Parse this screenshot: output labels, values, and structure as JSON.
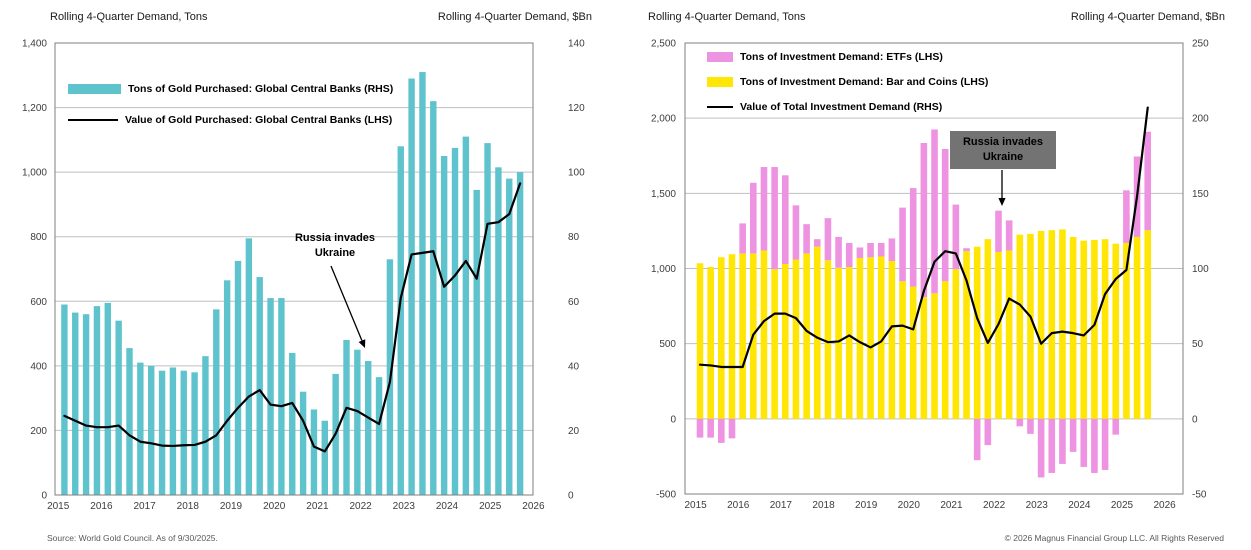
{
  "footer": {
    "source": "Source: World Gold Council. As of 9/30/2025.",
    "copyright": "© 2026 Magnus Financial Group LLC. All Rights Reserved"
  },
  "annotation_colors": {
    "plain_text": "#000000",
    "box_bg": "#737373",
    "box_text": "#000000"
  },
  "chart_data": [
    {
      "type": "bar",
      "subtype": "bar-with-line-overlay",
      "title_left": "Rolling 4-Quarter Demand, Tons",
      "title_right": "Rolling 4-Quarter Demand, $Bn",
      "grid": true,
      "legend_position": "top-left-inside",
      "y_left": {
        "min": 0,
        "max": 1400,
        "step": 200,
        "ticks": [
          "1,400",
          "1,200",
          "1,000",
          "800",
          "600",
          "400",
          "200",
          "0"
        ]
      },
      "y_right": {
        "min": 0,
        "max": 140,
        "step": 20,
        "ticks": [
          "140",
          "120",
          "100",
          "80",
          "60",
          "40",
          "20",
          "0"
        ]
      },
      "x_years": [
        "2015",
        "2016",
        "2017",
        "2018",
        "2019",
        "2020",
        "2021",
        "2022",
        "2023",
        "2024",
        "2025",
        "2026"
      ],
      "categories": [
        "2015 Q1",
        "2015 Q2",
        "2015 Q3",
        "2015 Q4",
        "2016 Q1",
        "2016 Q2",
        "2016 Q3",
        "2016 Q4",
        "2017 Q1",
        "2017 Q2",
        "2017 Q3",
        "2017 Q4",
        "2018 Q1",
        "2018 Q2",
        "2018 Q3",
        "2018 Q4",
        "2019 Q1",
        "2019 Q2",
        "2019 Q3",
        "2019 Q4",
        "2020 Q1",
        "2020 Q2",
        "2020 Q3",
        "2020 Q4",
        "2021 Q1",
        "2021 Q2",
        "2021 Q3",
        "2021 Q4",
        "2022 Q1",
        "2022 Q2",
        "2022 Q3",
        "2022 Q4",
        "2023 Q1",
        "2023 Q2",
        "2023 Q3",
        "2023 Q4",
        "2024 Q1",
        "2024 Q2",
        "2024 Q3",
        "2024 Q4",
        "2025 Q1",
        "2025 Q2",
        "2025 Q3"
      ],
      "series": [
        {
          "name": "Tons of Gold Purchased: Global Central Banks (RHS)",
          "type": "bar",
          "color": "#5EC3CD",
          "axis": "left",
          "unit": "tons",
          "values": [
            590,
            565,
            560,
            585,
            595,
            540,
            455,
            410,
            400,
            385,
            395,
            385,
            380,
            430,
            575,
            665,
            725,
            795,
            675,
            610,
            610,
            440,
            320,
            265,
            230,
            375,
            480,
            450,
            415,
            365,
            730,
            1080,
            1290,
            1310,
            1220,
            1050,
            1075,
            1110,
            945,
            1090,
            1015,
            980,
            1000
          ]
        },
        {
          "name": "Value of Gold Purchased: Global Central Banks (LHS)",
          "type": "line",
          "color": "#000000",
          "axis": "right",
          "unit": "$Bn",
          "values": [
            24.5,
            23,
            21.5,
            21,
            21,
            21.5,
            18.5,
            16.5,
            16,
            15.3,
            15.2,
            15.4,
            15.5,
            16.5,
            18.5,
            23,
            27,
            30.5,
            32.5,
            28,
            27.5,
            28.5,
            23,
            15,
            13.5,
            19,
            27,
            26,
            24,
            22,
            35,
            61,
            74.5,
            75,
            75.5,
            64.5,
            68,
            72.5,
            67,
            84,
            84.5,
            87,
            96.5
          ]
        }
      ],
      "annotation": {
        "line1": "Russia invades",
        "line2": "Ukraine",
        "style": "text-with-arrow"
      }
    },
    {
      "type": "bar",
      "subtype": "stacked-bar-with-line-overlay",
      "title_left": "Rolling 4-Quarter Demand, Tons",
      "title_right": "Rolling 4-Quarter Demand, $Bn",
      "grid": true,
      "legend_position": "top-left-inside",
      "y_left": {
        "min": -500,
        "max": 2500,
        "step": 500,
        "ticks": [
          "2,500",
          "2,000",
          "1,500",
          "1,000",
          "500",
          "0",
          "-500"
        ]
      },
      "y_right": {
        "min": -50,
        "max": 250,
        "step": 50,
        "ticks": [
          "250",
          "200",
          "150",
          "100",
          "50",
          "0",
          "-50"
        ]
      },
      "x_years": [
        "2015",
        "2016",
        "2017",
        "2018",
        "2019",
        "2020",
        "2021",
        "2022",
        "2023",
        "2024",
        "2025",
        "2026"
      ],
      "categories": [
        "2015 Q1",
        "2015 Q2",
        "2015 Q3",
        "2015 Q4",
        "2016 Q1",
        "2016 Q2",
        "2016 Q3",
        "2016 Q4",
        "2017 Q1",
        "2017 Q2",
        "2017 Q3",
        "2017 Q4",
        "2018 Q1",
        "2018 Q2",
        "2018 Q3",
        "2018 Q4",
        "2019 Q1",
        "2019 Q2",
        "2019 Q3",
        "2019 Q4",
        "2020 Q1",
        "2020 Q2",
        "2020 Q3",
        "2020 Q4",
        "2021 Q1",
        "2021 Q2",
        "2021 Q3",
        "2021 Q4",
        "2022 Q1",
        "2022 Q2",
        "2022 Q3",
        "2022 Q4",
        "2023 Q1",
        "2023 Q2",
        "2023 Q3",
        "2023 Q4",
        "2024 Q1",
        "2024 Q2",
        "2024 Q3",
        "2024 Q4",
        "2025 Q1",
        "2025 Q2",
        "2025 Q3"
      ],
      "series": [
        {
          "name": "Tons of Investment Demand: ETFs (LHS)",
          "type": "bar",
          "stack": "top",
          "color": "#EE93E2",
          "axis": "left",
          "unit": "tons",
          "values": [
            -125,
            -125,
            -160,
            -130,
            200,
            470,
            555,
            680,
            590,
            360,
            195,
            50,
            280,
            205,
            160,
            70,
            95,
            90,
            150,
            490,
            655,
            1025,
            1090,
            880,
            430,
            20,
            -275,
            -175,
            275,
            200,
            -50,
            -100,
            -390,
            -360,
            -300,
            -220,
            -320,
            -360,
            -340,
            -105,
            350,
            535,
            655
          ]
        },
        {
          "name": "Tons of Investment Demand: Bar and Coins (LHS)",
          "type": "bar",
          "stack": "base",
          "color": "#FFE605",
          "axis": "left",
          "unit": "tons",
          "values": [
            1035,
            1010,
            1075,
            1095,
            1100,
            1100,
            1120,
            995,
            1030,
            1060,
            1100,
            1145,
            1055,
            1005,
            1010,
            1070,
            1075,
            1080,
            1050,
            915,
            880,
            810,
            835,
            915,
            995,
            1115,
            1145,
            1195,
            1110,
            1120,
            1225,
            1230,
            1250,
            1255,
            1260,
            1210,
            1185,
            1190,
            1195,
            1165,
            1170,
            1210,
            1255
          ]
        },
        {
          "name": "Value of Total Investment Demand (RHS)",
          "type": "line",
          "color": "#000000",
          "axis": "right",
          "unit": "$Bn",
          "values": [
            36,
            35.5,
            34.5,
            34.5,
            34.5,
            56,
            65,
            70,
            70,
            67,
            58.5,
            54,
            51,
            51.5,
            55.5,
            51,
            47.5,
            51.5,
            61.5,
            62,
            59.5,
            85,
            104.5,
            111.5,
            110,
            92,
            67,
            50.5,
            63,
            80,
            76,
            68,
            50,
            57,
            58,
            57,
            55.5,
            62.5,
            83,
            93,
            99,
            148,
            207
          ]
        }
      ],
      "annotation": {
        "line1": "Russia invades",
        "line2": "Ukraine",
        "style": "gray-box-with-arrow"
      }
    }
  ]
}
